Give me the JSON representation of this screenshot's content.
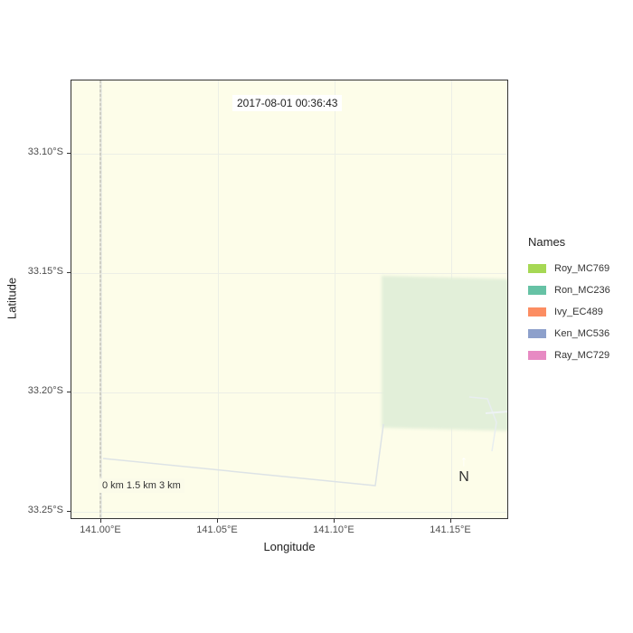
{
  "map": {
    "timestamp": "2017-08-01 00:36:43",
    "scalebar": "0 km   1.5 km   3 km",
    "north_label": "N",
    "x_axis": {
      "label": "Longitude",
      "ticks": [
        "141.00°E",
        "141.05°E",
        "141.10°E",
        "141.15°E"
      ]
    },
    "y_axis": {
      "label": "Latitude",
      "ticks": [
        "33.10°S",
        "33.15°S",
        "33.20°S",
        "33.25°S"
      ]
    },
    "background_color": "#fdfde9",
    "legend": {
      "title": "Names",
      "items": [
        {
          "label": "Roy_MC769",
          "color": "#a6d854"
        },
        {
          "label": "Ron_MC236",
          "color": "#66c2a5"
        },
        {
          "label": "Ivy_EC489",
          "color": "#fc8d62"
        },
        {
          "label": "Ken_MC536",
          "color": "#8da0cb"
        },
        {
          "label": "Ray_MC729",
          "color": "#e78ac3"
        }
      ]
    }
  }
}
